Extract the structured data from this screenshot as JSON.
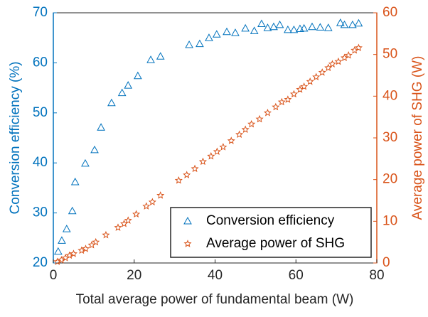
{
  "chart_data": {
    "type": "scatter",
    "xlabel": "Total average power of fundamental beam (W)",
    "ylabel": "Conversion efficiency (%)",
    "y2label": "Average power of SHG (W)",
    "xlim": [
      0,
      80
    ],
    "xticks": [
      0,
      20,
      40,
      60,
      80
    ],
    "ylim": [
      20,
      70
    ],
    "yticks": [
      20,
      30,
      40,
      50,
      60,
      70
    ],
    "y2lim": [
      0,
      60
    ],
    "y2ticks": [
      0,
      10,
      20,
      30,
      40,
      50,
      60
    ],
    "legend": "lower right",
    "series": [
      {
        "name": "Conversion efficiency",
        "color": "#0072bd",
        "marker": "triangle",
        "x": [
          1.2,
          2.1,
          3.3,
          4.7,
          5.4,
          7.9,
          10.2,
          11.8,
          14.4,
          17,
          18.5,
          20.9,
          24.1,
          26.5,
          33.6,
          36.2,
          38.5,
          40.4,
          42.9,
          45,
          47.5,
          49.7,
          51.5,
          53,
          54.5,
          56,
          58,
          59.5,
          61,
          62,
          64,
          66,
          68,
          71,
          72,
          74,
          75.5
        ],
        "values": [
          22.3,
          24.5,
          26.8,
          30.4,
          36.2,
          39.9,
          42.6,
          47.1,
          52,
          54,
          55.5,
          57.4,
          60.6,
          61.3,
          63.6,
          63.8,
          65,
          65.7,
          66.2,
          66,
          66.9,
          66.4,
          67.8,
          67,
          67.2,
          67.6,
          66.6,
          66.6,
          66.8,
          66.9,
          67.2,
          67.1,
          67,
          68,
          67.6,
          67.6,
          67.9
        ]
      },
      {
        "name": "Average power of SHG",
        "color": "#d95319",
        "marker": "star",
        "axis": "y2",
        "x": [
          1,
          2,
          3,
          4,
          5,
          7,
          8,
          9.5,
          10.5,
          13,
          16,
          17.5,
          18.5,
          20.5,
          23,
          24.5,
          26.5,
          31,
          33,
          35,
          37,
          39,
          40.5,
          42,
          44,
          46,
          47.5,
          49,
          51,
          53,
          55,
          56.5,
          58,
          59.5,
          61,
          62,
          63.5,
          65,
          66.5,
          68,
          69,
          70.5,
          72,
          73,
          74.5,
          75.5
        ],
        "values": [
          0.3,
          0.7,
          1.2,
          1.8,
          2.2,
          3,
          3.4,
          4.3,
          5,
          6.7,
          8.5,
          9.4,
          10.2,
          11.7,
          13.6,
          14.6,
          16.2,
          19.8,
          21.1,
          22.6,
          24.3,
          25.6,
          26.7,
          27.8,
          29.3,
          30.8,
          32,
          33.3,
          34.5,
          36,
          37.4,
          38.6,
          39.2,
          40.5,
          41.6,
          42.3,
          43.5,
          44.6,
          45.7,
          46.8,
          47.7,
          48.3,
          49.2,
          49.8,
          51,
          51.6
        ]
      }
    ]
  }
}
